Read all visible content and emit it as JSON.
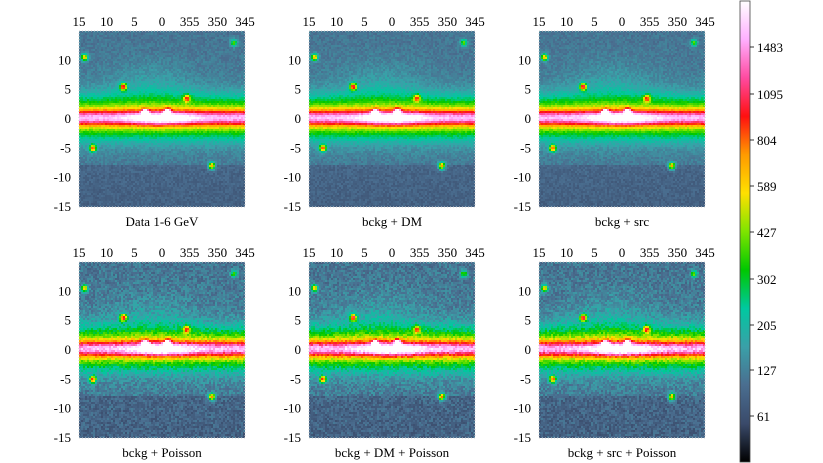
{
  "chart_data": [
    {
      "type": "heatmap",
      "title": "Data 1-6 GeV",
      "x_ticks": [
        "15",
        "10",
        "5",
        "0",
        "355",
        "350",
        "345"
      ],
      "y_ticks": [
        "10",
        "5",
        "0",
        "-5",
        "-10",
        "-15"
      ],
      "xlim": [
        15,
        -15
      ],
      "ylim": [
        -15,
        15
      ],
      "bright_spots": [
        [
          7,
          5.5,
          0.55
        ],
        [
          14,
          10.5,
          0.45
        ],
        [
          12.5,
          -5,
          0.5
        ],
        [
          -9,
          -8,
          0.5
        ],
        [
          -4.5,
          3.5,
          0.4
        ],
        [
          -13,
          13,
          0.3
        ],
        [
          3,
          1,
          0.7
        ],
        [
          -1,
          1.2,
          0.5
        ]
      ]
    },
    {
      "type": "heatmap",
      "title": "bckg + DM",
      "x_ticks": [
        "15",
        "10",
        "5",
        "0",
        "355",
        "350",
        "345"
      ],
      "y_ticks": [
        "10",
        "5",
        "0",
        "-5",
        "-10",
        "-15"
      ],
      "xlim": [
        15,
        -15
      ],
      "ylim": [
        -15,
        15
      ],
      "bright_spots": [
        [
          7,
          5.5,
          0.55
        ],
        [
          14,
          10.5,
          0.45
        ],
        [
          12.5,
          -5,
          0.5
        ],
        [
          -9,
          -8,
          0.5
        ],
        [
          -4.5,
          3.5,
          0.4
        ],
        [
          -13,
          13,
          0.3
        ],
        [
          3,
          1,
          0.7
        ],
        [
          -1,
          1.2,
          0.5
        ]
      ]
    },
    {
      "type": "heatmap",
      "title": "bckg + src",
      "x_ticks": [
        "15",
        "10",
        "5",
        "0",
        "355",
        "350",
        "345"
      ],
      "y_ticks": [
        "10",
        "5",
        "0",
        "-5",
        "-10",
        "-15"
      ],
      "xlim": [
        15,
        -15
      ],
      "ylim": [
        -15,
        15
      ],
      "bright_spots": [
        [
          7,
          5.5,
          0.55
        ],
        [
          14,
          10.5,
          0.45
        ],
        [
          12.5,
          -5,
          0.5
        ],
        [
          -9,
          -8,
          0.5
        ],
        [
          -4.5,
          3.5,
          0.4
        ],
        [
          -13,
          13,
          0.3
        ],
        [
          3,
          1,
          0.7
        ],
        [
          -1,
          1.2,
          0.5
        ]
      ]
    },
    {
      "type": "heatmap",
      "title": "bckg + Poisson",
      "x_ticks": [
        "15",
        "10",
        "5",
        "0",
        "355",
        "350",
        "345"
      ],
      "y_ticks": [
        "10",
        "5",
        "0",
        "-5",
        "-10",
        "-15"
      ],
      "xlim": [
        15,
        -15
      ],
      "ylim": [
        -15,
        15
      ],
      "bright_spots": [
        [
          7,
          5.5,
          0.55
        ],
        [
          14,
          10.5,
          0.45
        ],
        [
          12.5,
          -5,
          0.5
        ],
        [
          -9,
          -8,
          0.5
        ],
        [
          -4.5,
          3.5,
          0.4
        ],
        [
          -13,
          13,
          0.3
        ],
        [
          3,
          1,
          0.7
        ],
        [
          -1,
          1.2,
          0.5
        ]
      ]
    },
    {
      "type": "heatmap",
      "title": "bckg + DM + Poisson",
      "x_ticks": [
        "15",
        "10",
        "5",
        "0",
        "355",
        "350",
        "345"
      ],
      "y_ticks": [
        "10",
        "5",
        "0",
        "-5",
        "-10",
        "-15"
      ],
      "xlim": [
        15,
        -15
      ],
      "ylim": [
        -15,
        15
      ],
      "bright_spots": [
        [
          7,
          5.5,
          0.55
        ],
        [
          14,
          10.5,
          0.45
        ],
        [
          12.5,
          -5,
          0.5
        ],
        [
          -9,
          -8,
          0.5
        ],
        [
          -4.5,
          3.5,
          0.4
        ],
        [
          -13,
          13,
          0.3
        ],
        [
          3,
          1,
          0.7
        ],
        [
          -1,
          1.2,
          0.5
        ]
      ]
    },
    {
      "type": "heatmap",
      "title": "bckg + src + Poisson",
      "x_ticks": [
        "15",
        "10",
        "5",
        "0",
        "355",
        "350",
        "345"
      ],
      "y_ticks": [
        "10",
        "5",
        "0",
        "-5",
        "-10",
        "-15"
      ],
      "xlim": [
        15,
        -15
      ],
      "ylim": [
        -15,
        15
      ],
      "bright_spots": [
        [
          7,
          5.5,
          0.55
        ],
        [
          14,
          10.5,
          0.45
        ],
        [
          12.5,
          -5,
          0.5
        ],
        [
          -9,
          -8,
          0.5
        ],
        [
          -4.5,
          3.5,
          0.4
        ],
        [
          -13,
          13,
          0.3
        ],
        [
          3,
          1,
          0.7
        ],
        [
          -1,
          1.2,
          0.5
        ]
      ]
    }
  ],
  "colorbar": {
    "tick_labels": [
      "1483",
      "1095",
      "804",
      "589",
      "427",
      "302",
      "205",
      "127",
      "61"
    ],
    "colors": [
      "#ffffff",
      "#ffb0ff",
      "#ff4aa0",
      "#ff1010",
      "#ff9a00",
      "#ffe000",
      "#7fe400",
      "#00c800",
      "#00c8a0",
      "#3aa0a8",
      "#4a6e90",
      "#3a4a6a",
      "#000000"
    ]
  }
}
